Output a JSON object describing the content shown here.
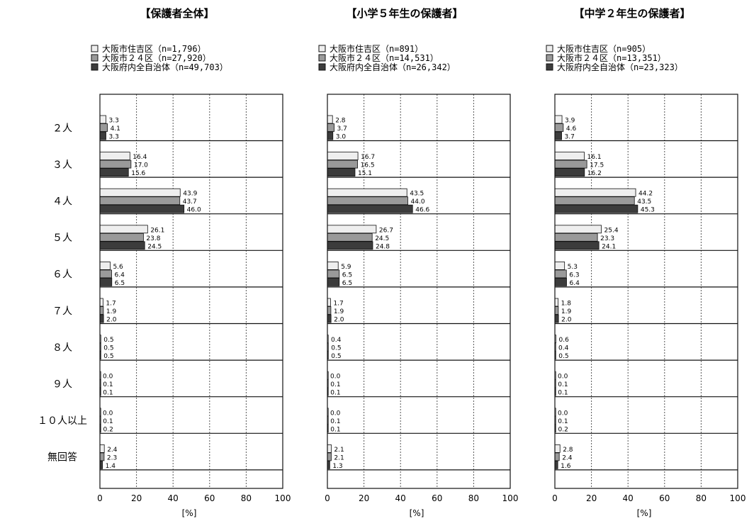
{
  "chart_data": [
    {
      "type": "bar",
      "title": "【保護者全体】",
      "xlabel": "[%]",
      "xlim": [
        0,
        100
      ],
      "xticks": [
        0,
        20,
        40,
        60,
        80,
        100
      ],
      "categories": [
        "２人",
        "３人",
        "４人",
        "５人",
        "６人",
        "７人",
        "８人",
        "９人",
        "１０人以上",
        "無回答"
      ],
      "series": [
        {
          "name": "大阪市住吉区（n=1,796）",
          "values": [
            3.3,
            16.4,
            43.9,
            26.1,
            5.6,
            1.7,
            0.5,
            0.0,
            0.0,
            2.4
          ],
          "labels": [
            "3.3",
            "16.4",
            "43.9",
            "26.1",
            "5.6",
            "1.7",
            "0.5",
            "0.0",
            "0.0",
            "2.4"
          ]
        },
        {
          "name": "大阪市２４区（n=27,920）",
          "values": [
            4.1,
            17.0,
            43.7,
            23.8,
            6.4,
            1.9,
            0.5,
            0.1,
            0.1,
            2.3
          ],
          "labels": [
            "4.1",
            "17.0",
            "43.7",
            "23.8",
            "6.4",
            "1.9",
            "0.5",
            "0.1",
            "0.1",
            "2.3"
          ]
        },
        {
          "name": "大阪府内全自治体（n=49,703）",
          "values": [
            3.3,
            15.6,
            46.0,
            24.5,
            6.5,
            2.0,
            0.5,
            0.1,
            0.2,
            1.4
          ],
          "labels": [
            "3.3",
            "15.6",
            "46.0",
            "24.5",
            "6.5",
            "2.0",
            "0.5",
            "0.1",
            "0.2",
            "1.4"
          ]
        }
      ]
    },
    {
      "type": "bar",
      "title": "【小学５年生の保護者】",
      "xlabel": "[%]",
      "xlim": [
        0,
        100
      ],
      "xticks": [
        0,
        20,
        40,
        60,
        80,
        100
      ],
      "categories": [
        "２人",
        "３人",
        "４人",
        "５人",
        "６人",
        "７人",
        "８人",
        "９人",
        "１０人以上",
        "無回答"
      ],
      "series": [
        {
          "name": "大阪市住吉区（n=891）",
          "values": [
            2.8,
            16.7,
            43.5,
            26.7,
            5.9,
            1.7,
            0.4,
            0.0,
            0.0,
            2.1
          ],
          "labels": [
            "2.8",
            "16.7",
            "43.5",
            "26.7",
            "5.9",
            "1.7",
            "0.4",
            "0.0",
            "0.0",
            "2.1"
          ]
        },
        {
          "name": "大阪市２４区（n=14,531）",
          "values": [
            3.7,
            16.5,
            44.0,
            24.5,
            6.5,
            1.9,
            0.5,
            0.1,
            0.1,
            2.1
          ],
          "labels": [
            "3.7",
            "16.5",
            "44.0",
            "24.5",
            "6.5",
            "1.9",
            "0.5",
            "0.1",
            "0.1",
            "2.1"
          ]
        },
        {
          "name": "大阪府内全自治体（n=26,342）",
          "values": [
            3.0,
            15.1,
            46.6,
            24.8,
            6.5,
            2.0,
            0.5,
            0.1,
            0.1,
            1.3
          ],
          "labels": [
            "3.0",
            "15.1",
            "46.6",
            "24.8",
            "6.5",
            "2.0",
            "0.5",
            "0.1",
            "0.1",
            "1.3"
          ]
        }
      ]
    },
    {
      "type": "bar",
      "title": "【中学２年生の保護者】",
      "xlabel": "[%]",
      "xlim": [
        0,
        100
      ],
      "xticks": [
        0,
        20,
        40,
        60,
        80,
        100
      ],
      "categories": [
        "２人",
        "３人",
        "４人",
        "５人",
        "６人",
        "７人",
        "８人",
        "９人",
        "１０人以上",
        "無回答"
      ],
      "series": [
        {
          "name": "大阪市住吉区（n=905）",
          "values": [
            3.9,
            16.1,
            44.2,
            25.4,
            5.3,
            1.8,
            0.6,
            0.0,
            0.0,
            2.8
          ],
          "labels": [
            "3.9",
            "16.1",
            "44.2",
            "25.4",
            "5.3",
            "1.8",
            "0.6",
            "0.0",
            "0.0",
            "2.8"
          ]
        },
        {
          "name": "大阪市２４区（n=13,351）",
          "values": [
            4.6,
            17.5,
            43.5,
            23.3,
            6.3,
            1.9,
            0.4,
            0.1,
            0.1,
            2.4
          ],
          "labels": [
            "4.6",
            "17.5",
            "43.5",
            "23.3",
            "6.3",
            "1.9",
            "0.4",
            "0.1",
            "0.1",
            "2.4"
          ]
        },
        {
          "name": "大阪府内全自治体（n=23,323）",
          "values": [
            3.7,
            16.2,
            45.3,
            24.1,
            6.4,
            2.0,
            0.5,
            0.1,
            0.2,
            1.6
          ],
          "labels": [
            "3.7",
            "16.2",
            "45.3",
            "24.1",
            "6.4",
            "2.0",
            "0.5",
            "0.1",
            "0.2",
            "1.6"
          ]
        }
      ]
    }
  ],
  "colors": {
    "series": [
      "#eeeeee",
      "#9a9a9a",
      "#3c3c3c"
    ],
    "bar_stroke": "#111111",
    "grid": "#555555",
    "frame": "#111111"
  }
}
